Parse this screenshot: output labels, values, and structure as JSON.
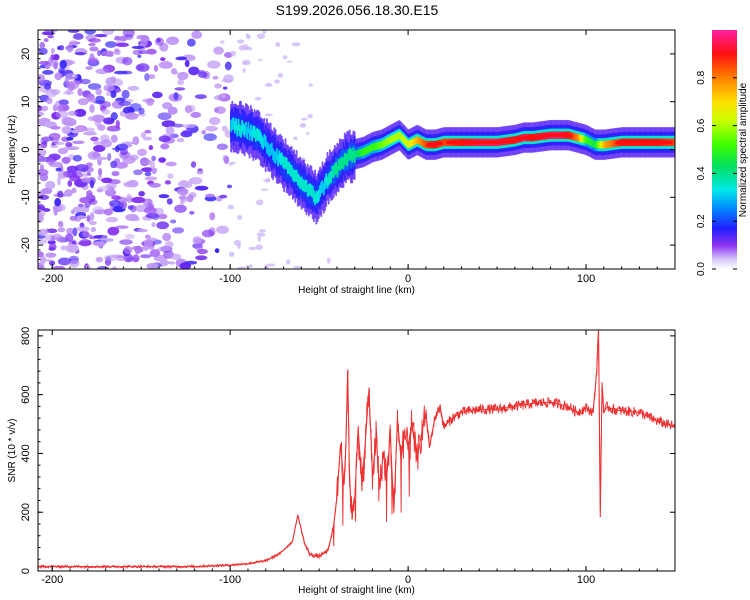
{
  "title": "S199.2026.056.18.30.E15",
  "chart_data": [
    {
      "type": "heatmap",
      "name": "spectrogram",
      "xlabel": "Height of straight line (km)",
      "ylabel": "Frequency (Hz)",
      "xlim": [
        -208,
        150
      ],
      "ylim": [
        -25,
        25
      ],
      "xticks": [
        -200,
        -100,
        0,
        100
      ],
      "yticks": [
        -20,
        -10,
        0,
        10,
        20
      ],
      "colorbar": {
        "label": "Normalized spectral amplitude",
        "range": [
          0.0,
          1.0
        ],
        "ticks": [
          0.0,
          0.2,
          0.4,
          0.6,
          0.8
        ],
        "tick_labels": [
          "0.0",
          "0.2",
          "0.4",
          "0.6",
          "0.8"
        ]
      },
      "noise_region_x": [
        -208,
        -100
      ],
      "ridge": {
        "x": [
          -100,
          -95,
          -90,
          -85,
          -80,
          -75,
          -70,
          -65,
          -60,
          -55,
          -52,
          -48,
          -45,
          -40,
          -35,
          -30,
          -25,
          -20,
          -15,
          -10,
          -5,
          0,
          5,
          10,
          15,
          20,
          30,
          40,
          50,
          60,
          65,
          70,
          80,
          85,
          90,
          95,
          100,
          105,
          110,
          120,
          130,
          140,
          150
        ],
        "y": [
          5,
          4.5,
          4,
          3,
          1,
          -1,
          -3,
          -5,
          -7,
          -9,
          -10,
          -8,
          -6,
          -4,
          -2,
          -1,
          -0.5,
          0.5,
          1,
          2,
          3,
          1,
          2,
          1,
          1,
          1.5,
          1.5,
          1.5,
          1.5,
          2,
          2.5,
          2.5,
          3,
          3,
          3,
          2.5,
          2,
          1,
          1,
          1.5,
          1.5,
          1.5,
          1.5
        ],
        "amplitude": [
          0.3,
          0.35,
          0.3,
          0.35,
          0.3,
          0.3,
          0.35,
          0.35,
          0.35,
          0.35,
          0.35,
          0.3,
          0.35,
          0.4,
          0.4,
          0.4,
          0.5,
          0.5,
          0.55,
          0.6,
          0.6,
          0.65,
          0.75,
          0.85,
          0.9,
          0.85,
          0.9,
          0.95,
          0.95,
          0.9,
          0.95,
          0.9,
          0.95,
          0.95,
          0.9,
          0.8,
          0.5,
          0.45,
          0.75,
          0.9,
          0.9,
          0.9,
          0.85
        ]
      }
    },
    {
      "type": "line",
      "name": "snr",
      "xlabel": "Height of straight line (km)",
      "ylabel": "SNR (10 * v/v)",
      "xlim": [
        -208,
        150
      ],
      "ylim": [
        0,
        820
      ],
      "xticks": [
        -200,
        -100,
        0,
        100
      ],
      "yticks": [
        0,
        200,
        400,
        600,
        800
      ],
      "color": "#ee3030",
      "series": [
        {
          "name": "SNR",
          "x": [
            -208,
            -180,
            -150,
            -120,
            -100,
            -90,
            -80,
            -72,
            -65,
            -62,
            -58,
            -55,
            -50,
            -45,
            -42,
            -40,
            -38,
            -36,
            -35,
            -34,
            -33,
            -32,
            -30,
            -28,
            -26,
            -24,
            -22,
            -20,
            -18,
            -16,
            -14,
            -12,
            -10,
            -8,
            -6,
            -4,
            -2,
            0,
            2,
            5,
            8,
            10,
            12,
            15,
            18,
            20,
            25,
            30,
            40,
            50,
            60,
            70,
            80,
            90,
            95,
            100,
            104,
            106,
            107,
            108,
            109,
            110,
            112,
            115,
            120,
            130,
            140,
            150
          ],
          "y": [
            15,
            15,
            15,
            15,
            20,
            25,
            35,
            60,
            100,
            190,
            90,
            55,
            50,
            70,
            150,
            250,
            430,
            300,
            420,
            680,
            350,
            200,
            250,
            480,
            300,
            440,
            620,
            320,
            460,
            280,
            400,
            320,
            470,
            200,
            520,
            380,
            470,
            420,
            500,
            380,
            480,
            540,
            420,
            520,
            560,
            490,
            520,
            540,
            550,
            550,
            560,
            570,
            575,
            560,
            540,
            555,
            540,
            680,
            830,
            185,
            640,
            540,
            560,
            550,
            545,
            540,
            510,
            490
          ]
        }
      ]
    }
  ]
}
